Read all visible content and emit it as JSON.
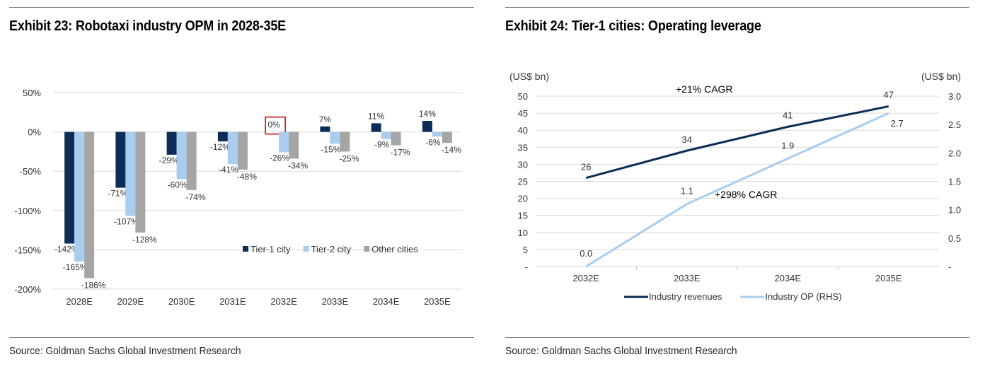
{
  "exhibit23": {
    "title": "Exhibit 23: Robotaxi industry OPM in 2028-35E",
    "source": "Source: Goldman Sachs Global Investment Research"
  },
  "exhibit24": {
    "title": "Exhibit 24: Tier-1 cities: Operating leverage",
    "source": "Source: Goldman Sachs Global Investment Research"
  },
  "colors": {
    "tier1": "#0b2d56",
    "tier2": "#a9cdee",
    "other": "#a5a5a5",
    "revenue_line": "#0b2d56",
    "op_line": "#a9cdee",
    "highlight_box": "#c00000"
  },
  "chart_data": [
    {
      "type": "bar",
      "title": "Exhibit 23: Robotaxi industry OPM in 2028-35E",
      "categories": [
        "2028E",
        "2029E",
        "2030E",
        "2031E",
        "2032E",
        "2033E",
        "2034E",
        "2035E"
      ],
      "series": [
        {
          "name": "Tier-1 city",
          "values": [
            -142,
            -71,
            -29,
            -12,
            0,
            7,
            11,
            14
          ],
          "labels": [
            "-142%",
            "-71%",
            "-29%",
            "-12%",
            "0%",
            "7%",
            "11%",
            "14%"
          ]
        },
        {
          "name": "Tier-2 city",
          "values": [
            -165,
            -107,
            -60,
            -41,
            -26,
            -15,
            -9,
            -6
          ],
          "labels": [
            "-165%",
            "-107%",
            "-60%",
            "-41%",
            "-26%",
            "-15%",
            "-9%",
            "-6%"
          ]
        },
        {
          "name": "Other cities",
          "values": [
            -186,
            -128,
            -74,
            -48,
            -34,
            -25,
            -17,
            -14
          ],
          "labels": [
            "-186%",
            "-128%",
            "-74%",
            "-48%",
            "-34%",
            "-25%",
            "-17%",
            "-14%"
          ]
        }
      ],
      "yticks": [
        "50%",
        "0%",
        "-50%",
        "-100%",
        "-150%",
        "-200%"
      ],
      "ylim": [
        -200,
        50
      ],
      "grid": true,
      "legend_position": "bottom-right",
      "highlight": "0%"
    },
    {
      "type": "line",
      "title": "Exhibit 24: Tier-1 cities: Operating leverage",
      "categories": [
        "2032E",
        "2033E",
        "2034E",
        "2035E"
      ],
      "y_left_unit": "(US$ bn)",
      "y_right_unit": "(US$ bn)",
      "y_left_ticks": [
        "50",
        "45",
        "40",
        "35",
        "30",
        "25",
        "20",
        "15",
        "10",
        "5",
        "-"
      ],
      "y_right_ticks": [
        "3.0",
        "2.5",
        "2.0",
        "1.5",
        "1.0",
        "0.5",
        "-"
      ],
      "ylim_left": [
        0,
        50
      ],
      "ylim_right": [
        0,
        3.0
      ],
      "series": [
        {
          "name": "Industry revenues",
          "axis": "left",
          "values": [
            26,
            34,
            41,
            47
          ],
          "labels": [
            "26",
            "34",
            "41",
            "47"
          ]
        },
        {
          "name": "Industry OP (RHS)",
          "axis": "right",
          "values": [
            0.0,
            1.1,
            1.9,
            2.7
          ],
          "labels": [
            "0.0",
            "1.1",
            "1.9",
            "2.7"
          ]
        }
      ],
      "annotations": [
        "+21% CAGR",
        "+298% CAGR"
      ],
      "grid": true,
      "legend_position": "bottom"
    }
  ]
}
